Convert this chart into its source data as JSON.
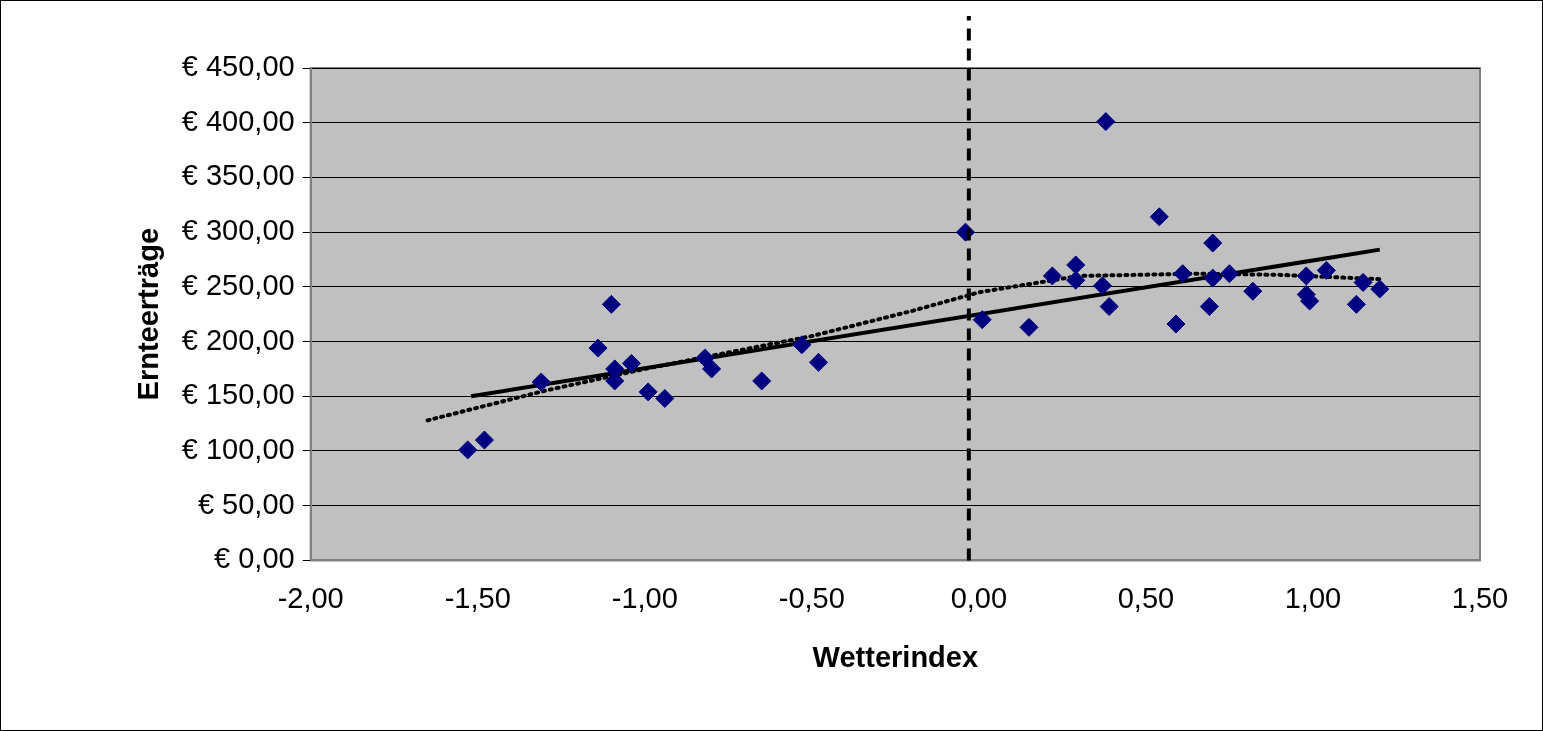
{
  "chart_data": {
    "type": "scatter",
    "xlabel": "Wetterindex",
    "ylabel": "Ernteerträge",
    "xlim": [
      -2,
      1.5
    ],
    "ylim": [
      0,
      450
    ],
    "xticks": [
      {
        "value": -2,
        "label": "-2,00"
      },
      {
        "value": -1.5,
        "label": "-1,50"
      },
      {
        "value": -1,
        "label": "-1,00"
      },
      {
        "value": -0.5,
        "label": "-0,50"
      },
      {
        "value": 0,
        "label": "0,00"
      },
      {
        "value": 0.5,
        "label": "0,50"
      },
      {
        "value": 1,
        "label": "1,00"
      },
      {
        "value": 1.5,
        "label": "1,50"
      }
    ],
    "yticks": [
      {
        "value": 0,
        "label": "€ 0,00"
      },
      {
        "value": 50,
        "label": "€ 50,00"
      },
      {
        "value": 100,
        "label": "€ 100,00"
      },
      {
        "value": 150,
        "label": "€ 150,00"
      },
      {
        "value": 200,
        "label": "€ 200,00"
      },
      {
        "value": 250,
        "label": "€ 250,00"
      },
      {
        "value": 300,
        "label": "€ 300,00"
      },
      {
        "value": 350,
        "label": "€ 350,00"
      },
      {
        "value": 400,
        "label": "€ 400,00"
      },
      {
        "value": 450,
        "label": "€ 450,00"
      }
    ],
    "grid": "y",
    "legend": false,
    "series": [
      {
        "marker": "diamond",
        "color": "#000080",
        "x": [
          -1.53,
          -1.48,
          -1.31,
          -1.14,
          -1.1,
          -1.09,
          -1.09,
          -1.04,
          -0.99,
          -0.94,
          -0.82,
          -0.8,
          -0.65,
          -0.53,
          -0.48,
          -0.04,
          0.01,
          0.15,
          0.22,
          0.29,
          0.29,
          0.38,
          0.37,
          0.39,
          0.54,
          0.59,
          0.61,
          0.69,
          0.7,
          0.7,
          0.75,
          0.82,
          0.98,
          0.98,
          0.99,
          1.04,
          1.13,
          1.15,
          1.2
        ],
        "values": [
          101,
          110,
          163,
          194,
          234,
          175,
          164,
          180,
          154,
          148,
          185,
          175,
          164,
          197,
          181,
          300,
          220,
          213,
          260,
          270,
          256,
          401,
          251,
          232,
          314,
          216,
          262,
          232,
          290,
          258,
          262,
          246,
          260,
          243,
          237,
          265,
          234,
          254,
          248
        ]
      },
      {
        "type": "line",
        "marker": "none",
        "color": "#000000",
        "line_style": "solid",
        "x": [
          -1.52,
          1.2
        ],
        "values": [
          150,
          284
        ]
      },
      {
        "type": "line",
        "marker": "none",
        "color": "#000000",
        "line_style": "dotted",
        "x": [
          -1.65,
          -1.3,
          -1.0,
          -0.5,
          -0.2,
          0,
          0.3,
          0.65,
          0.9,
          1.2
        ],
        "values": [
          128,
          155,
          175,
          205,
          228,
          245,
          260,
          262,
          261,
          257
        ]
      }
    ],
    "ref_lines": [
      {
        "axis": "x",
        "value": -0.03,
        "color": "#000000",
        "line_style": "dashed"
      }
    ]
  }
}
